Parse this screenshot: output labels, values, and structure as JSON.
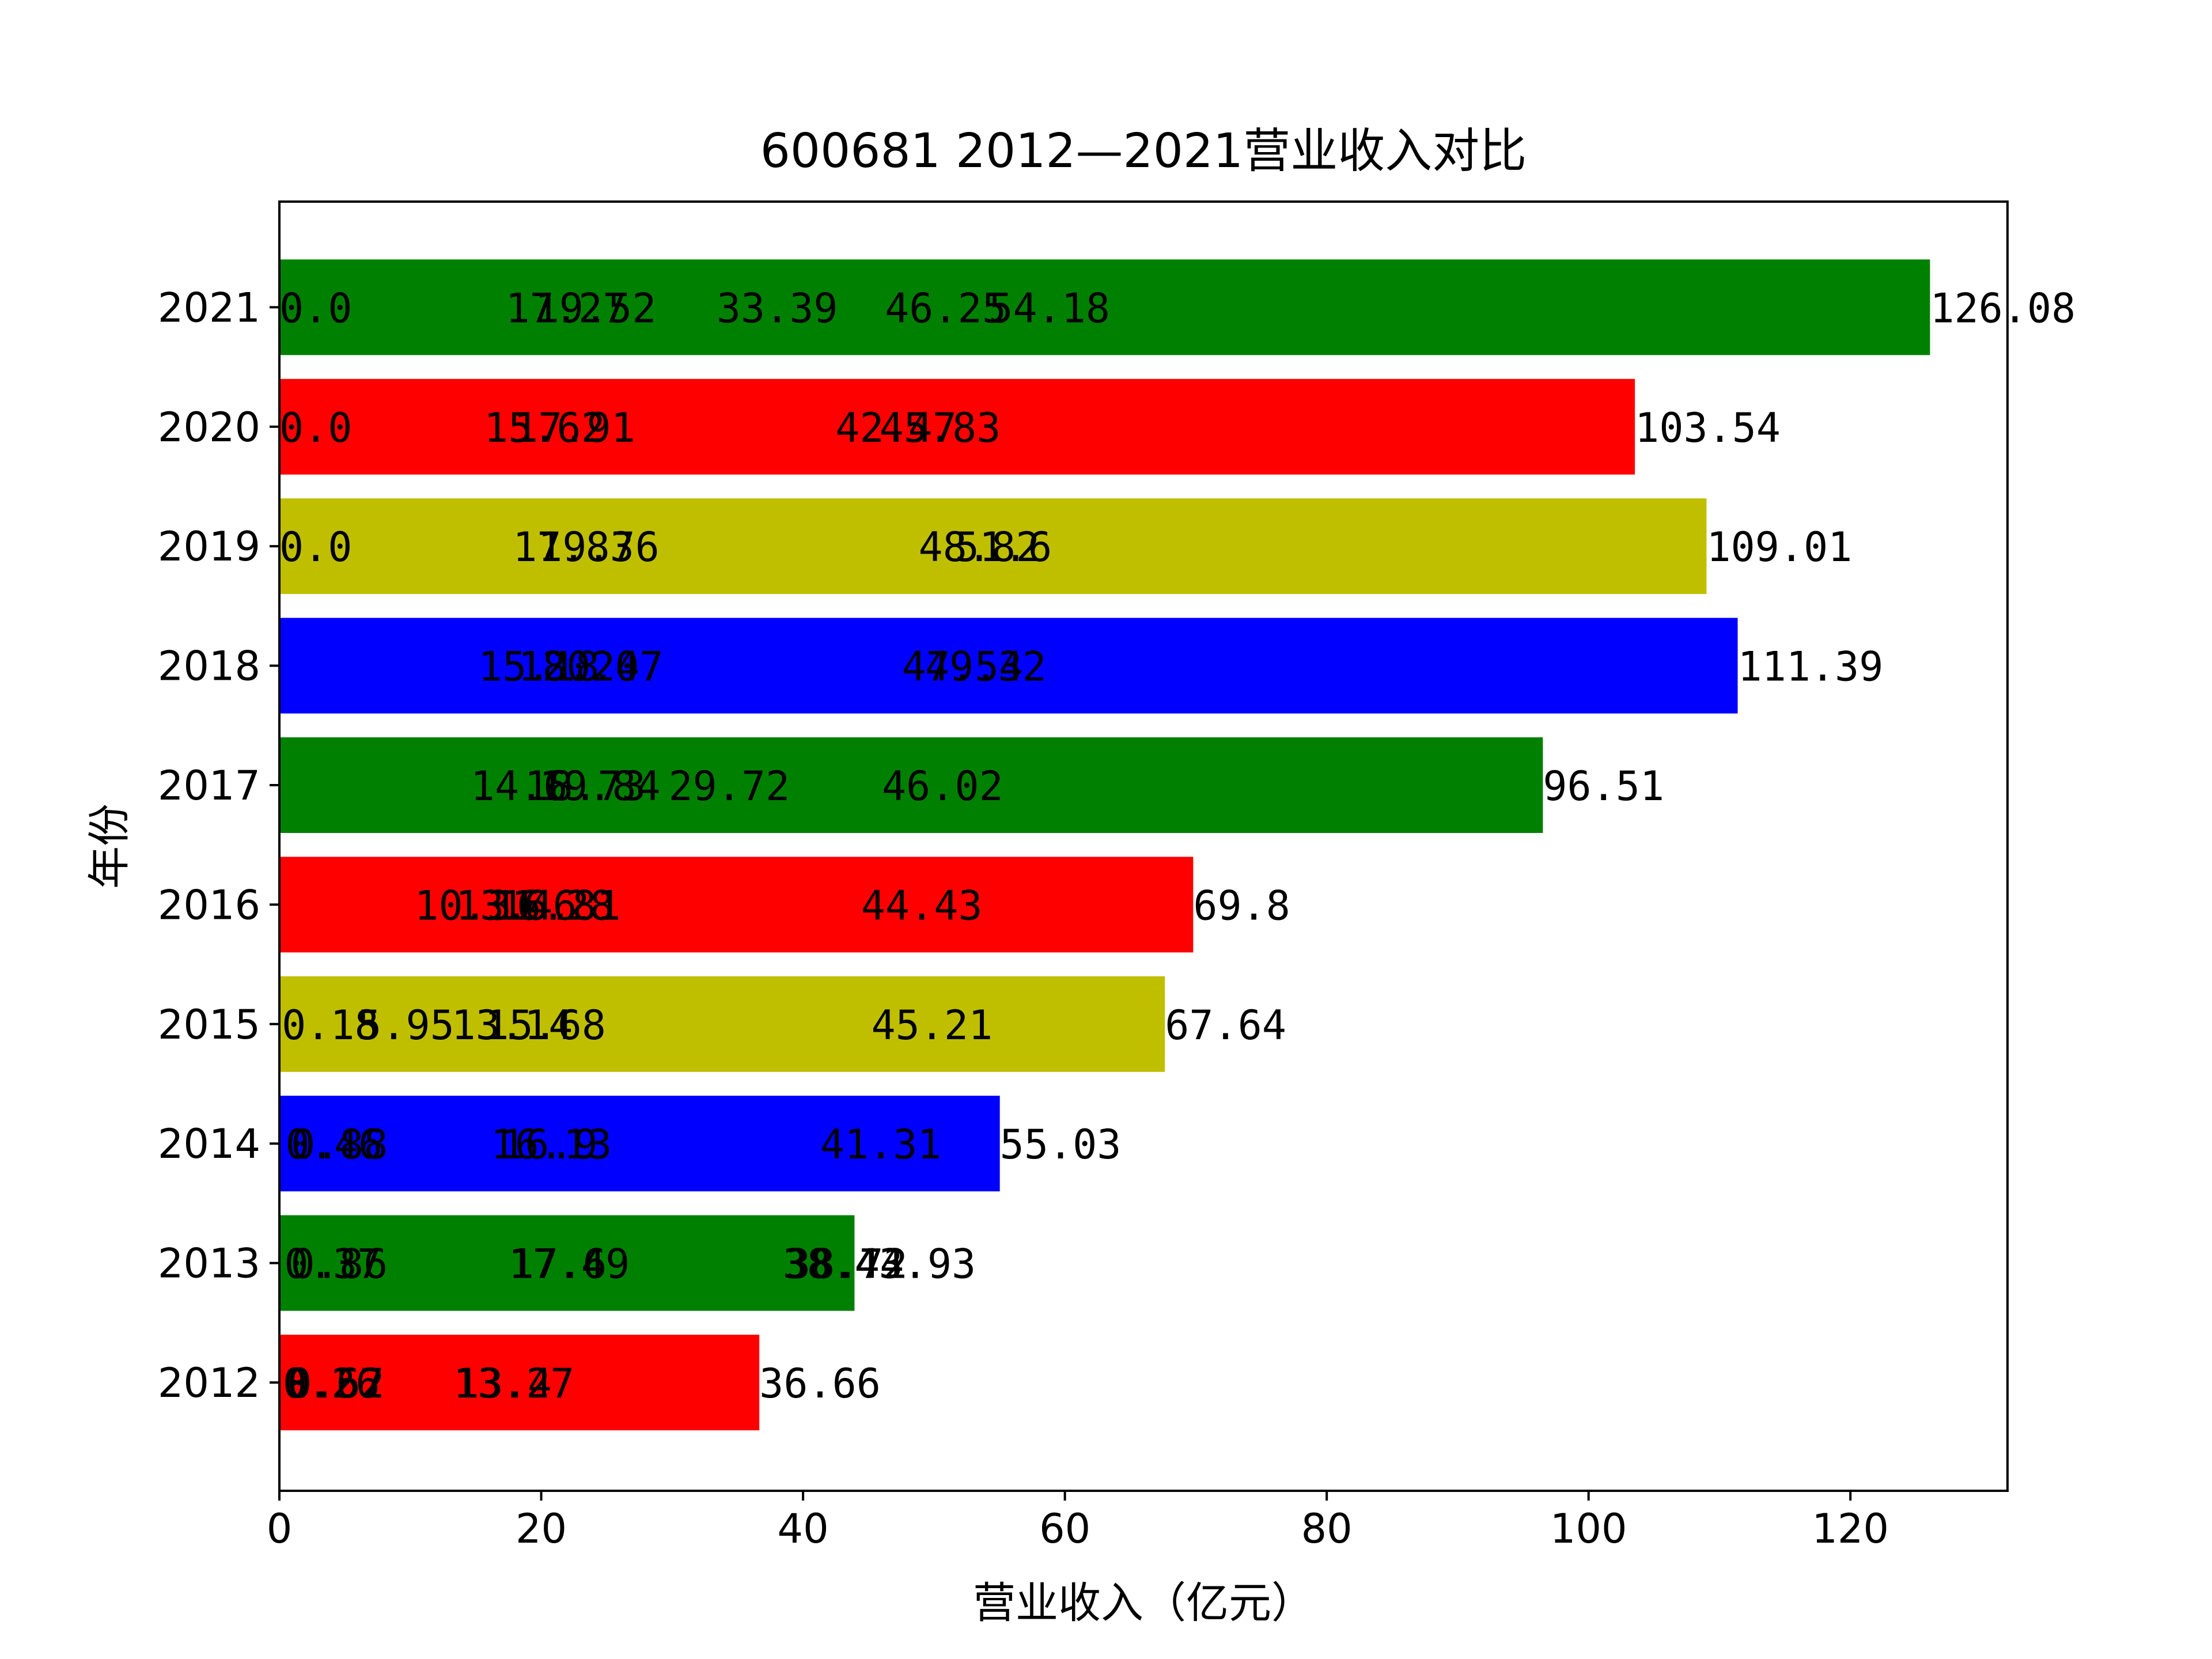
{
  "chart_data": {
    "type": "bar",
    "orientation": "horizontal",
    "title": "600681 2012—2021营业收入对比",
    "xlabel": "营业收入（亿元）",
    "ylabel": "年份",
    "xlim": [
      0,
      132
    ],
    "xticks": [
      0,
      20,
      40,
      60,
      80,
      100,
      120
    ],
    "categories": [
      "2012",
      "2013",
      "2014",
      "2015",
      "2016",
      "2017",
      "2018",
      "2019",
      "2020",
      "2021"
    ],
    "values": [
      36.66,
      43.93,
      55.03,
      67.64,
      69.8,
      96.51,
      111.39,
      109.01,
      103.54,
      126.08
    ],
    "value_labels": [
      "36.66",
      "43.93",
      "55.03",
      "67.64",
      "69.8",
      "96.51",
      "111.39",
      "109.01",
      "103.54",
      "126.08"
    ],
    "bar_colors": [
      "#ff0000",
      "#008000",
      "#0000ff",
      "#bfbf00",
      "#ff0000",
      "#008000",
      "#0000ff",
      "#bfbf00",
      "#ff0000",
      "#008000"
    ],
    "inner_labels": [
      [
        {
          "x": 0.26,
          "text": "0.26"
        },
        {
          "x": 0.57,
          "text": "0.57"
        },
        {
          "x": 0.62,
          "text": "0.62"
        },
        {
          "x": 13.27,
          "text": "13.27"
        },
        {
          "x": 13.4,
          "text": "13.4"
        }
      ],
      [
        {
          "x": 0.37,
          "text": "0.37"
        },
        {
          "x": 0.86,
          "text": "0.86"
        },
        {
          "x": 17.49,
          "text": "17.49"
        },
        {
          "x": 17.6,
          "text": "17.6"
        },
        {
          "x": 38.44,
          "text": "38.44"
        },
        {
          "x": 38.72,
          "text": "38.72"
        }
      ],
      [
        {
          "x": 0.46,
          "text": "0.46"
        },
        {
          "x": 0.88,
          "text": "0.88"
        },
        {
          "x": 16.13,
          "text": "16.13"
        },
        {
          "x": 16.9,
          "text": "16.9"
        },
        {
          "x": 41.31,
          "text": "41.31"
        }
      ],
      [
        {
          "x": 0.18,
          "text": "0.18"
        },
        {
          "x": 5.95,
          "text": "5.95"
        },
        {
          "x": 13.14,
          "text": "13.14"
        },
        {
          "x": 15.68,
          "text": "15.68"
        },
        {
          "x": 45.21,
          "text": "45.21"
        }
      ],
      [
        {
          "x": 10.31,
          "text": "10.31"
        },
        {
          "x": 13.46,
          "text": "13.46"
        },
        {
          "x": 16.28,
          "text": "16.28"
        },
        {
          "x": 16.81,
          "text": "16.81"
        },
        {
          "x": 44.43,
          "text": "44.43"
        }
      ],
      [
        {
          "x": 14.6,
          "text": "14.6"
        },
        {
          "x": 18.73,
          "text": "18.73"
        },
        {
          "x": 19.84,
          "text": "19.84"
        },
        {
          "x": 29.72,
          "text": "29.72"
        },
        {
          "x": 46.02,
          "text": "46.02"
        }
      ],
      [
        {
          "x": 15.18,
          "text": "15.18"
        },
        {
          "x": 18.24,
          "text": "18.24"
        },
        {
          "x": 20.07,
          "text": "20.07"
        },
        {
          "x": 47.54,
          "text": "47.54"
        },
        {
          "x": 49.32,
          "text": "49.32"
        }
      ],
      [
        {
          "x": 0.0,
          "text": "0.0"
        },
        {
          "x": 17.83,
          "text": "17.83"
        },
        {
          "x": 19.76,
          "text": "19.76"
        },
        {
          "x": 48.82,
          "text": "48.82"
        },
        {
          "x": 51.6,
          "text": "51.6"
        }
      ],
      [
        {
          "x": 0.0,
          "text": "0.0"
        },
        {
          "x": 15.62,
          "text": "15.62"
        },
        {
          "x": 17.91,
          "text": "17.91"
        },
        {
          "x": 42.47,
          "text": "42.47"
        },
        {
          "x": 45.83,
          "text": "45.83"
        }
      ],
      [
        {
          "x": 0.0,
          "text": "0.0"
        },
        {
          "x": 17.27,
          "text": "17.27"
        },
        {
          "x": 19.52,
          "text": "19.52"
        },
        {
          "x": 33.39,
          "text": "33.39"
        },
        {
          "x": 46.25,
          "text": "46.25"
        },
        {
          "x": 54.18,
          "text": "54.18"
        }
      ]
    ]
  }
}
